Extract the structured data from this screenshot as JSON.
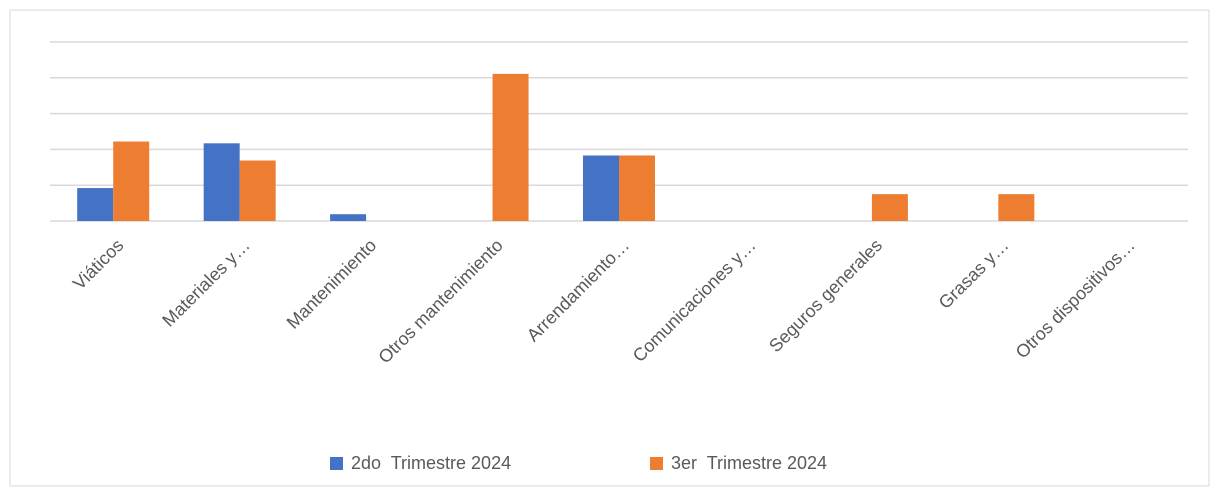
{
  "chart_data": {
    "type": "bar",
    "categories": [
      "Viáticos",
      "Materiales y…",
      "Mantenimiento",
      "Otros mantenimiento",
      "Arrendamiento…",
      "Comunicaciones y…",
      "Seguros generales",
      "Grasas y…",
      "Otros dispositivos…"
    ],
    "series": [
      {
        "name": "2do  Trimestre 2024",
        "color": "#4472c4",
        "values": [
          0.92,
          2.17,
          0.19,
          0,
          1.83,
          0,
          0,
          0,
          0
        ]
      },
      {
        "name": "3er  Trimestre 2024",
        "color": "#ed7d31",
        "values": [
          2.22,
          1.69,
          0,
          4.11,
          1.83,
          0,
          0.75,
          0.75,
          0
        ]
      }
    ],
    "ylim": [
      0,
      5
    ],
    "yticks": [
      0,
      1,
      2,
      3,
      4,
      5
    ],
    "grid": true,
    "legend": "bottom"
  }
}
